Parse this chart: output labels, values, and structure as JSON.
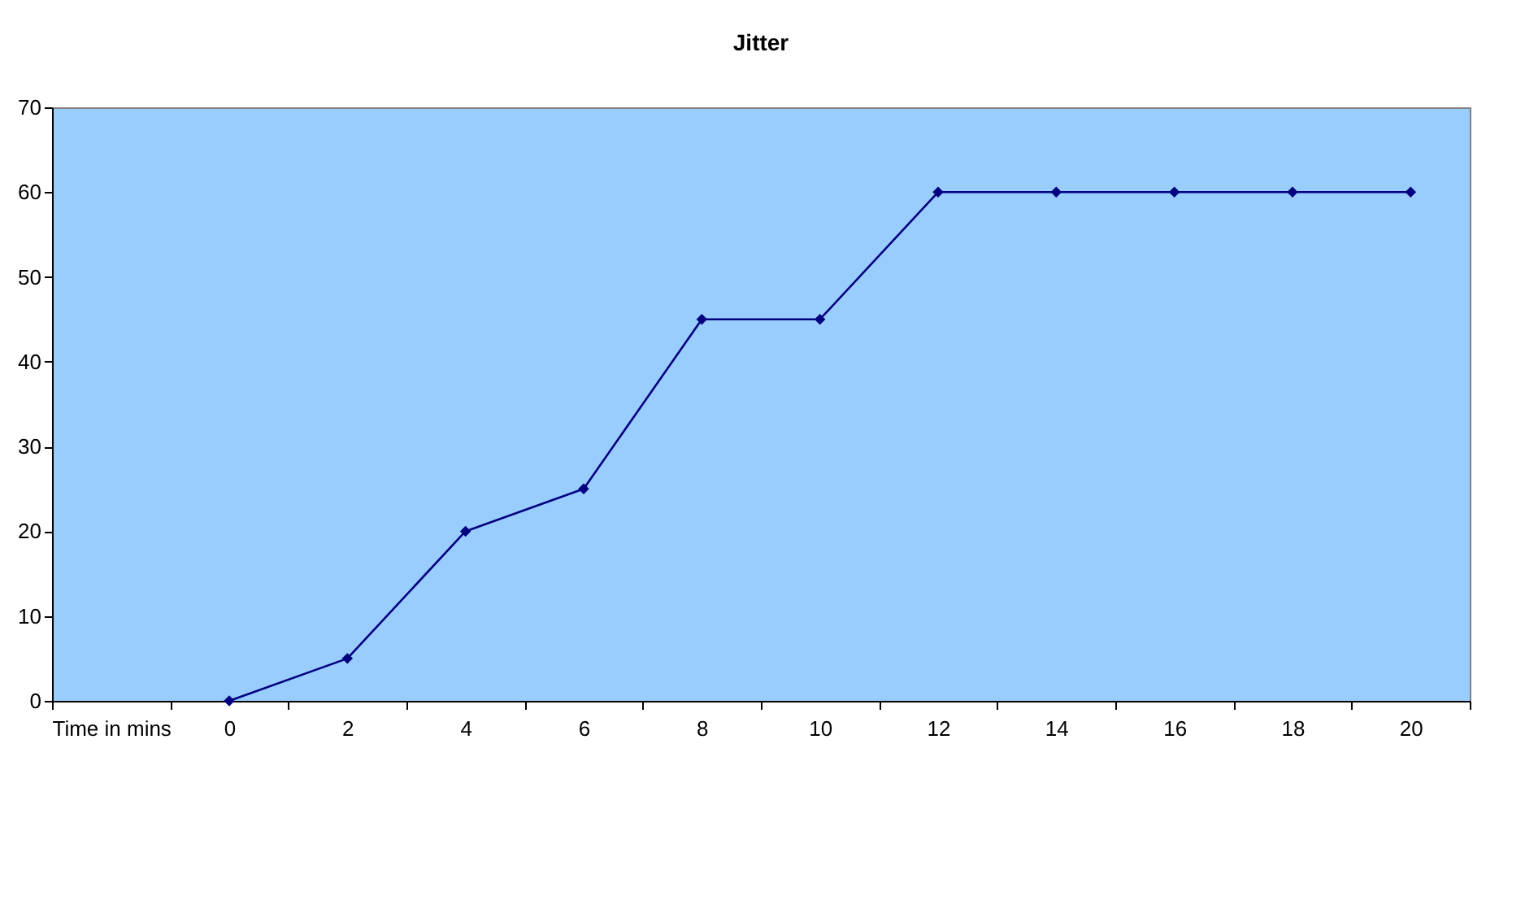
{
  "chart_data": {
    "type": "line",
    "title": "Jitter",
    "categories": [
      "Time in mins",
      "0",
      "2",
      "4",
      "6",
      "8",
      "10",
      "12",
      "14",
      "16",
      "18",
      "20"
    ],
    "series": [
      {
        "color": "#000080",
        "values": [
          null,
          0,
          5,
          20,
          25,
          45,
          45,
          60,
          60,
          60,
          60,
          60
        ]
      }
    ],
    "ylim": [
      0,
      70
    ],
    "yticks": [
      0,
      10,
      20,
      30,
      40,
      50,
      60,
      70
    ],
    "grid": false,
    "marker": "diamond",
    "line_style": "solid"
  }
}
